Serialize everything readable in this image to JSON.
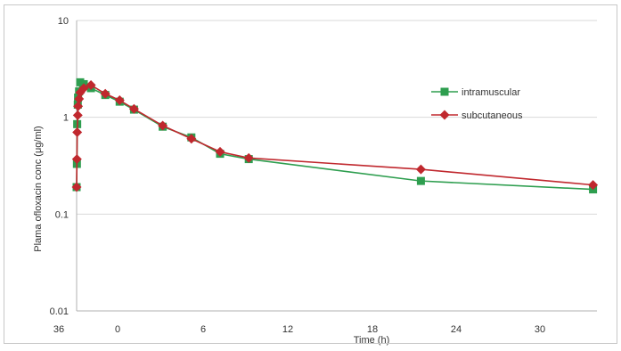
{
  "chart_data": {
    "type": "line",
    "ylabel": "Plama ofloxacin conc (μg/ml)",
    "xlabel": "Time (h)",
    "y_scale": "log",
    "ylim": [
      0.01,
      10
    ],
    "y_ticks": [
      "10",
      "1",
      "0.1",
      "0.01"
    ],
    "x_ticks": [
      "36",
      "0",
      "6",
      "12",
      "18",
      "24",
      "30"
    ],
    "grid": "horizontal",
    "legend_position": "right",
    "series": [
      {
        "name": "intramuscular",
        "color": "#2e9e4f",
        "marker": "square",
        "x": [
          0,
          0.02,
          0.04,
          0.08,
          0.1,
          0.17,
          0.25,
          0.5,
          1,
          2,
          3,
          4,
          6,
          8,
          10,
          12,
          24,
          36
        ],
        "y": [
          0.19,
          0.33,
          0.85,
          1.35,
          1.6,
          1.85,
          2.3,
          2.2,
          2.0,
          1.7,
          1.45,
          1.2,
          0.8,
          0.62,
          0.42,
          0.37,
          0.22,
          0.18
        ]
      },
      {
        "name": "subcutaneous",
        "color": "#c0282e",
        "marker": "diamond",
        "x": [
          0,
          0.02,
          0.04,
          0.08,
          0.1,
          0.17,
          0.25,
          0.5,
          1,
          2,
          3,
          4,
          6,
          8,
          10,
          12,
          24,
          36
        ],
        "y": [
          0.19,
          0.37,
          0.7,
          1.05,
          1.3,
          1.55,
          1.8,
          2.0,
          2.15,
          1.75,
          1.5,
          1.22,
          0.82,
          0.6,
          0.44,
          0.38,
          0.29,
          0.2
        ]
      }
    ]
  }
}
